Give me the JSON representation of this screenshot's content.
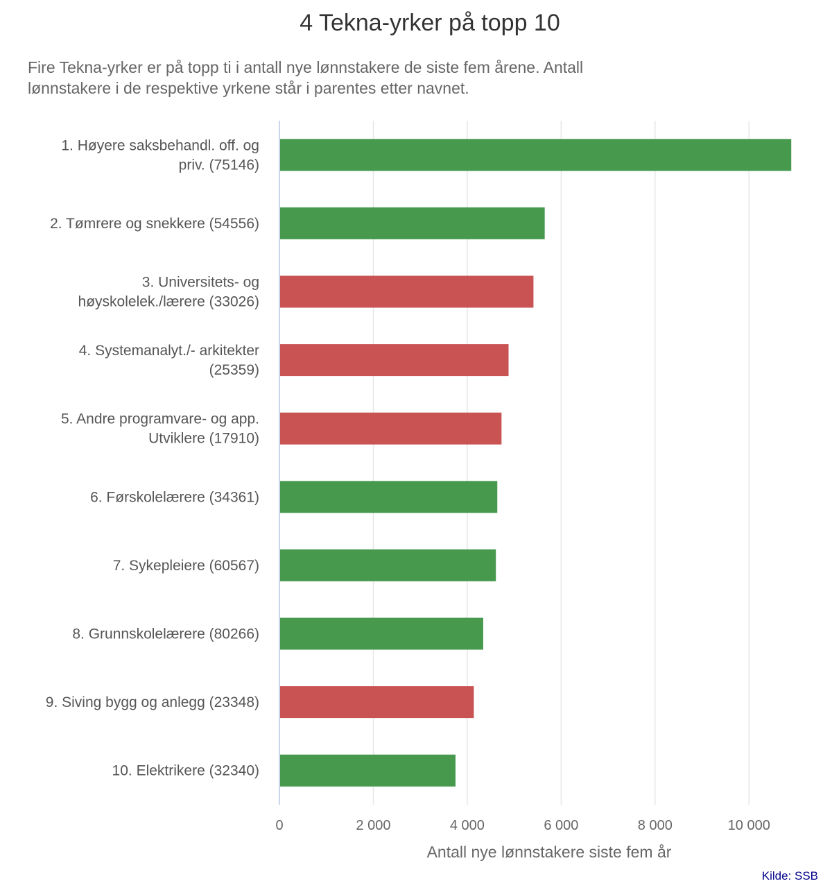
{
  "chart_data": {
    "type": "bar",
    "orientation": "horizontal",
    "title": "4 Tekna-yrker på topp 10",
    "subtitle": "Fire Tekna-yrker er på topp ti i antall nye lønnstakere de siste fem årene. Antall lønnstakere i de respektive yrkene står i parentes etter navnet.",
    "xlabel": "Antall nye lønnstakere siste fem år",
    "ylabel": "",
    "source": "Kilde: SSB",
    "xlim": [
      0,
      11000
    ],
    "x_ticks": [
      0,
      2000,
      4000,
      6000,
      8000,
      10000
    ],
    "x_tick_labels": [
      "0",
      "2 000",
      "4 000",
      "6 000",
      "8 000",
      "10 000"
    ],
    "grid": true,
    "legend": "none",
    "colors": {
      "green": "#47994e",
      "red": "#c95253"
    },
    "categories": [
      {
        "label_lines": [
          "1. Høyere saksbehandl. off. og",
          "priv. (75146)"
        ],
        "value": 10900,
        "color": "green"
      },
      {
        "label_lines": [
          "2. Tømrere og snekkere (54556)"
        ],
        "value": 5650,
        "color": "green"
      },
      {
        "label_lines": [
          "3. Universitets- og",
          "høyskolelek./lærere (33026)"
        ],
        "value": 5410,
        "color": "red"
      },
      {
        "label_lines": [
          "4. Systemanalyt./- arkitekter",
          "(25359)"
        ],
        "value": 4880,
        "color": "red"
      },
      {
        "label_lines": [
          "5. Andre programvare- og app.",
          "Utviklere (17910)"
        ],
        "value": 4730,
        "color": "red"
      },
      {
        "label_lines": [
          "6. Førskolelærere (34361)"
        ],
        "value": 4640,
        "color": "green"
      },
      {
        "label_lines": [
          "7. Sykepleiere (60567)"
        ],
        "value": 4610,
        "color": "green"
      },
      {
        "label_lines": [
          "8. Grunnskolelærere (80266)"
        ],
        "value": 4340,
        "color": "green"
      },
      {
        "label_lines": [
          "9. Siving bygg og anlegg (23348)"
        ],
        "value": 4140,
        "color": "red"
      },
      {
        "label_lines": [
          "10. Elektrikere (32340)"
        ],
        "value": 3750,
        "color": "green"
      }
    ]
  }
}
